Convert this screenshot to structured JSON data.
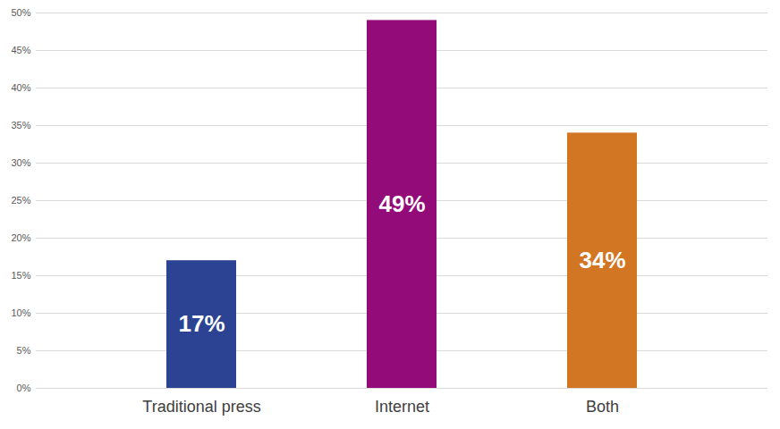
{
  "chart_data": {
    "type": "bar",
    "categories": [
      "Traditional press",
      "Internet",
      "Both"
    ],
    "values": [
      17,
      49,
      34
    ],
    "value_labels": [
      "17%",
      "49%",
      "34%"
    ],
    "colors": [
      "#2b4392",
      "#930a79",
      "#d27623"
    ],
    "ylim": [
      0,
      50
    ],
    "yticks": [
      {
        "value": 0,
        "label": "0%"
      },
      {
        "value": 5,
        "label": "5%"
      },
      {
        "value": 10,
        "label": "10%"
      },
      {
        "value": 15,
        "label": "15%"
      },
      {
        "value": 20,
        "label": "20%"
      },
      {
        "value": 25,
        "label": "25%"
      },
      {
        "value": 30,
        "label": "30%"
      },
      {
        "value": 35,
        "label": "35%"
      },
      {
        "value": 40,
        "label": "40%"
      },
      {
        "value": 45,
        "label": "45%"
      },
      {
        "value": 50,
        "label": "50%"
      }
    ],
    "grid": true,
    "data_labels": true
  }
}
